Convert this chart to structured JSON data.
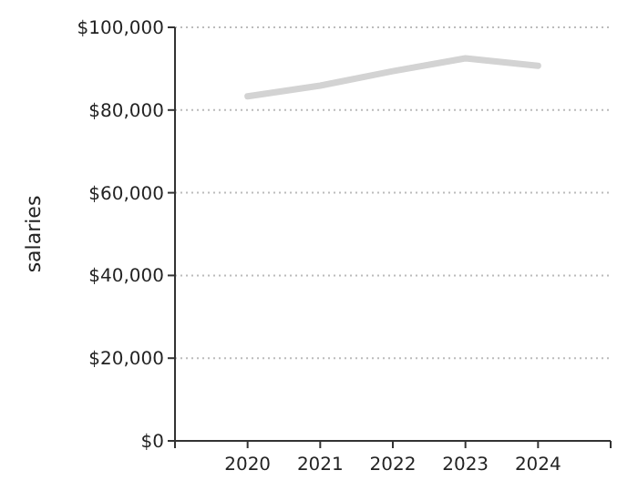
{
  "chart_data": {
    "type": "line",
    "ylabel": "salaries",
    "x": [
      2020,
      2021,
      2022,
      2023,
      2024
    ],
    "series": [
      {
        "color": "#d3d3d3",
        "values": [
          83300,
          85900,
          89400,
          92500,
          90700
        ]
      }
    ],
    "xlim": [
      2019,
      2025
    ],
    "xticks": [
      {
        "value": 2019,
        "label": null
      },
      2020,
      2021,
      2022,
      2023,
      2024,
      {
        "value": 2025,
        "label": null
      }
    ],
    "ylim": [
      0,
      100000
    ],
    "yticks": [
      {
        "value": 0,
        "label": "$0"
      },
      {
        "value": 20000,
        "label": "$20,000"
      },
      {
        "value": 40000,
        "label": "$40,000"
      },
      {
        "value": 60000,
        "label": "$60,000"
      },
      {
        "value": 80000,
        "label": "$80,000"
      },
      {
        "value": 100000,
        "label": "$100,000"
      }
    ],
    "grid": "y",
    "marker": "none",
    "line_style": "solid"
  }
}
